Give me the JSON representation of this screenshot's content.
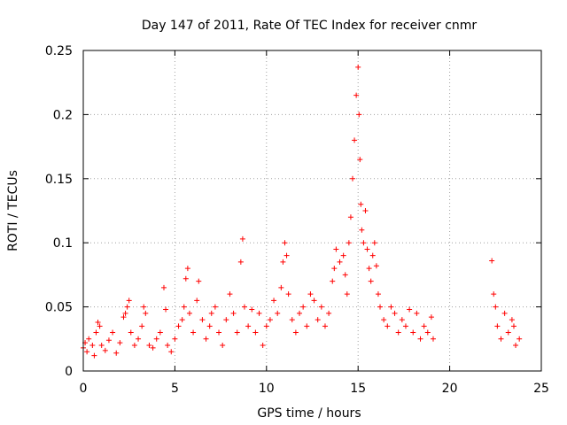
{
  "chart_data": {
    "type": "scatter",
    "title": "Day 147 of 2011, Rate Of TEC Index for receiver cnmr",
    "xlabel": "GPS time / hours",
    "ylabel": "ROTI / TECUs",
    "xlim": [
      0,
      25
    ],
    "ylim": [
      0,
      0.25
    ],
    "xticks": [
      0,
      5,
      10,
      15,
      20,
      25
    ],
    "yticks": [
      0,
      0.05,
      0.1,
      0.15,
      0.2,
      0.25
    ],
    "xtick_labels": [
      "0",
      "5",
      "10",
      "15",
      "20",
      "25"
    ],
    "ytick_labels": [
      "0",
      "0.05",
      "0.1",
      "0.15",
      "0.2",
      "0.25"
    ],
    "grid": true,
    "marker": "+",
    "color": "#ff0000",
    "series": [
      {
        "name": "ROTI",
        "points": [
          [
            0.0,
            0.018
          ],
          [
            0.1,
            0.022
          ],
          [
            0.2,
            0.015
          ],
          [
            0.3,
            0.025
          ],
          [
            0.5,
            0.02
          ],
          [
            0.6,
            0.012
          ],
          [
            0.7,
            0.03
          ],
          [
            0.8,
            0.038
          ],
          [
            0.9,
            0.035
          ],
          [
            1.0,
            0.02
          ],
          [
            1.2,
            0.016
          ],
          [
            1.4,
            0.024
          ],
          [
            1.6,
            0.03
          ],
          [
            1.8,
            0.014
          ],
          [
            2.0,
            0.022
          ],
          [
            2.2,
            0.042
          ],
          [
            2.3,
            0.045
          ],
          [
            2.4,
            0.05
          ],
          [
            2.5,
            0.055
          ],
          [
            2.6,
            0.03
          ],
          [
            2.8,
            0.02
          ],
          [
            3.0,
            0.025
          ],
          [
            3.2,
            0.035
          ],
          [
            3.3,
            0.05
          ],
          [
            3.4,
            0.045
          ],
          [
            3.6,
            0.02
          ],
          [
            3.8,
            0.018
          ],
          [
            4.0,
            0.025
          ],
          [
            4.2,
            0.03
          ],
          [
            4.4,
            0.065
          ],
          [
            4.5,
            0.048
          ],
          [
            4.6,
            0.02
          ],
          [
            4.8,
            0.015
          ],
          [
            5.0,
            0.025
          ],
          [
            5.2,
            0.035
          ],
          [
            5.4,
            0.04
          ],
          [
            5.5,
            0.05
          ],
          [
            5.6,
            0.072
          ],
          [
            5.7,
            0.08
          ],
          [
            5.8,
            0.045
          ],
          [
            6.0,
            0.03
          ],
          [
            6.2,
            0.055
          ],
          [
            6.3,
            0.07
          ],
          [
            6.5,
            0.04
          ],
          [
            6.7,
            0.025
          ],
          [
            6.9,
            0.035
          ],
          [
            7.0,
            0.045
          ],
          [
            7.2,
            0.05
          ],
          [
            7.4,
            0.03
          ],
          [
            7.6,
            0.02
          ],
          [
            7.8,
            0.04
          ],
          [
            8.0,
            0.06
          ],
          [
            8.2,
            0.045
          ],
          [
            8.4,
            0.03
          ],
          [
            8.6,
            0.085
          ],
          [
            8.7,
            0.103
          ],
          [
            8.8,
            0.05
          ],
          [
            9.0,
            0.035
          ],
          [
            9.2,
            0.048
          ],
          [
            9.4,
            0.03
          ],
          [
            9.6,
            0.045
          ],
          [
            9.8,
            0.02
          ],
          [
            10.0,
            0.035
          ],
          [
            10.2,
            0.04
          ],
          [
            10.4,
            0.055
          ],
          [
            10.6,
            0.045
          ],
          [
            10.8,
            0.065
          ],
          [
            10.9,
            0.085
          ],
          [
            11.0,
            0.1
          ],
          [
            11.1,
            0.09
          ],
          [
            11.2,
            0.06
          ],
          [
            11.4,
            0.04
          ],
          [
            11.6,
            0.03
          ],
          [
            11.8,
            0.045
          ],
          [
            12.0,
            0.05
          ],
          [
            12.2,
            0.035
          ],
          [
            12.4,
            0.06
          ],
          [
            12.6,
            0.055
          ],
          [
            12.8,
            0.04
          ],
          [
            13.0,
            0.05
          ],
          [
            13.2,
            0.035
          ],
          [
            13.4,
            0.045
          ],
          [
            13.6,
            0.07
          ],
          [
            13.7,
            0.08
          ],
          [
            13.8,
            0.095
          ],
          [
            14.0,
            0.085
          ],
          [
            14.2,
            0.09
          ],
          [
            14.3,
            0.075
          ],
          [
            14.4,
            0.06
          ],
          [
            14.5,
            0.1
          ],
          [
            14.6,
            0.12
          ],
          [
            14.7,
            0.15
          ],
          [
            14.8,
            0.18
          ],
          [
            14.9,
            0.215
          ],
          [
            15.0,
            0.237
          ],
          [
            15.05,
            0.2
          ],
          [
            15.1,
            0.165
          ],
          [
            15.15,
            0.13
          ],
          [
            15.2,
            0.11
          ],
          [
            15.3,
            0.1
          ],
          [
            15.4,
            0.125
          ],
          [
            15.5,
            0.095
          ],
          [
            15.6,
            0.08
          ],
          [
            15.7,
            0.07
          ],
          [
            15.8,
            0.09
          ],
          [
            15.9,
            0.1
          ],
          [
            16.0,
            0.082
          ],
          [
            16.1,
            0.06
          ],
          [
            16.2,
            0.05
          ],
          [
            16.4,
            0.04
          ],
          [
            16.6,
            0.035
          ],
          [
            16.8,
            0.05
          ],
          [
            17.0,
            0.045
          ],
          [
            17.2,
            0.03
          ],
          [
            17.4,
            0.04
          ],
          [
            17.6,
            0.035
          ],
          [
            17.8,
            0.048
          ],
          [
            18.0,
            0.03
          ],
          [
            18.2,
            0.045
          ],
          [
            18.4,
            0.025
          ],
          [
            18.6,
            0.035
          ],
          [
            18.8,
            0.03
          ],
          [
            19.0,
            0.042
          ],
          [
            19.1,
            0.025
          ],
          [
            22.3,
            0.086
          ],
          [
            22.4,
            0.06
          ],
          [
            22.5,
            0.05
          ],
          [
            22.6,
            0.035
          ],
          [
            22.8,
            0.025
          ],
          [
            23.0,
            0.045
          ],
          [
            23.2,
            0.03
          ],
          [
            23.4,
            0.04
          ],
          [
            23.5,
            0.035
          ],
          [
            23.6,
            0.02
          ],
          [
            23.8,
            0.025
          ]
        ]
      }
    ]
  }
}
